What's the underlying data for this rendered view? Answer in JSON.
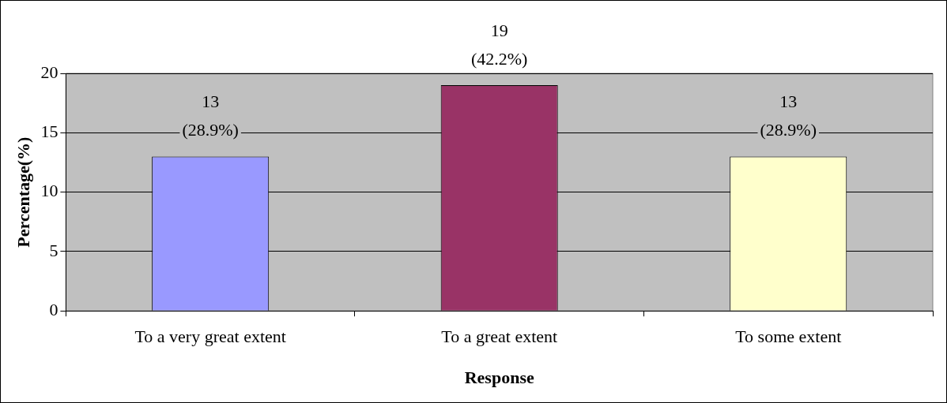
{
  "chart_data": {
    "type": "bar",
    "xlabel": "Response",
    "ylabel": "Percentage(%)",
    "categories": [
      "To a very great extent",
      "To a great extent",
      "To some extent"
    ],
    "values": [
      13,
      19,
      13
    ],
    "colors": [
      "#9999ff",
      "#993366",
      "#ffffcc"
    ],
    "value_labels": [
      "13\n(28.9%)",
      "19\n(42.2%)",
      "13\n(28.9%)"
    ],
    "ylim": [
      0,
      20
    ],
    "yticks": [
      0,
      5,
      10,
      15,
      20
    ],
    "grid": "y",
    "legend": false
  }
}
